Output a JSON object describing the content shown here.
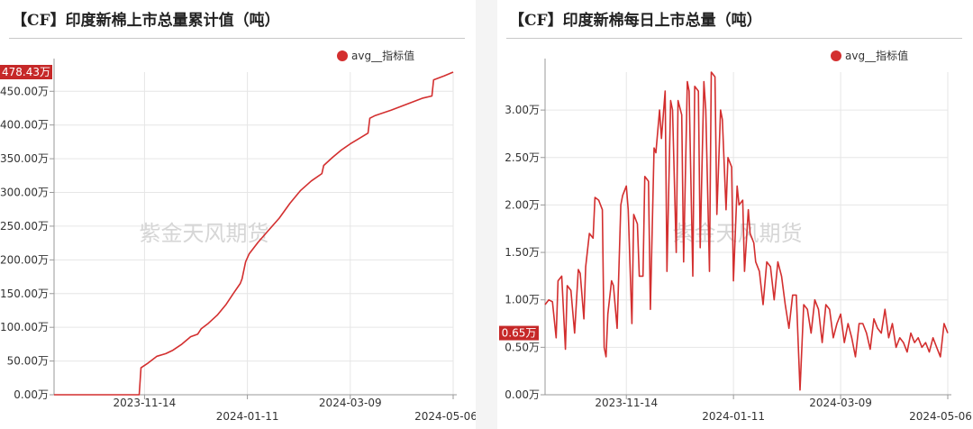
{
  "charts": [
    {
      "title": "【CF】印度新棉上市总量累计值（吨）",
      "watermark": "紫金天风期货",
      "current_value_label": "478.43万",
      "legend": {
        "label": "avg__指标值",
        "color": "#d32f2f",
        "placement": "top-right"
      }
    },
    {
      "title": "【CF】印度新棉每日上市总量（吨）",
      "watermark": "紫金天风期货",
      "current_value_label": "0.65万",
      "legend": {
        "label": "avg__指标值",
        "color": "#d32f2f",
        "placement": "top-right"
      }
    }
  ],
  "chart_data": [
    {
      "type": "line",
      "title": "【CF】印度新棉上市总量累计值（吨）",
      "unit": "万",
      "line_color": "#d32f2f",
      "ylim": [
        0,
        478.43
      ],
      "y_ticks": [
        0,
        50,
        100,
        150,
        200,
        250,
        300,
        350,
        400,
        450
      ],
      "y_tick_labels": [
        "0.00万",
        "50.00万",
        "100.00万",
        "150.00万",
        "200.00万",
        "250.00万",
        "300.00万",
        "350.00万",
        "400.00万",
        "450.00万"
      ],
      "x_range": [
        "2023-09-24",
        "2024-05-06"
      ],
      "x_ticks": [
        "2023-11-14",
        "2024-01-11",
        "2024-03-09",
        "2024-05-06"
      ],
      "x_tick_labels": [
        "2023-11-14",
        "2024-01-11",
        "2024-03-09",
        "2024-05-06"
      ],
      "grid": true,
      "current_value": 478.43,
      "series": [
        {
          "x": [
            "2023-09-24",
            "2023-11-11",
            "2023-11-12",
            "2023-11-16",
            "2023-11-21",
            "2023-11-26",
            "2023-11-30",
            "2023-12-05",
            "2023-12-10",
            "2023-12-14",
            "2023-12-16",
            "2023-12-20",
            "2023-12-25",
            "2023-12-30",
            "2024-01-03",
            "2024-01-07",
            "2024-01-08",
            "2024-01-10",
            "2024-01-12",
            "2024-01-17",
            "2024-01-23",
            "2024-01-29",
            "2024-02-04",
            "2024-02-10",
            "2024-02-16",
            "2024-02-22",
            "2024-02-23",
            "2024-02-28",
            "2024-03-04",
            "2024-03-09",
            "2024-03-14",
            "2024-03-19",
            "2024-03-20",
            "2024-03-23",
            "2024-04-01",
            "2024-04-10",
            "2024-04-19",
            "2024-04-24",
            "2024-04-25",
            "2024-05-01",
            "2024-05-06"
          ],
          "y": [
            0,
            0,
            40,
            47,
            57,
            61,
            66,
            75,
            86,
            90,
            98,
            106,
            118,
            134,
            150,
            165,
            172,
            197,
            209,
            226,
            244,
            262,
            284,
            303,
            317,
            328,
            340,
            352,
            363,
            372,
            380,
            388,
            410,
            414,
            422,
            431,
            440,
            443,
            467,
            473,
            478.43
          ]
        }
      ]
    },
    {
      "type": "line",
      "title": "【CF】印度新棉每日上市总量（吨）",
      "unit": "万",
      "line_color": "#d32f2f",
      "ylim": [
        0,
        3.4
      ],
      "y_ticks": [
        0,
        0.5,
        1,
        1.5,
        2,
        2.5,
        3
      ],
      "y_tick_labels": [
        "0.00万",
        "0.50万",
        "1.00万",
        "1.50万",
        "2.00万",
        "2.50万",
        "3.00万"
      ],
      "x_range": [
        "2023-10-01",
        "2024-05-06"
      ],
      "x_ticks": [
        "2023-11-14",
        "2024-01-11",
        "2024-03-09",
        "2024-05-06"
      ],
      "x_tick_labels": [
        "2023-11-14",
        "2024-01-11",
        "2024-03-09",
        "2024-05-06"
      ],
      "grid": true,
      "current_value": 0.65,
      "series": [
        {
          "x": [
            "2023-10-01",
            "2023-10-03",
            "2023-10-05",
            "2023-10-07",
            "2023-10-08",
            "2023-10-10",
            "2023-10-12",
            "2023-10-13",
            "2023-10-15",
            "2023-10-17",
            "2023-10-19",
            "2023-10-20",
            "2023-10-22",
            "2023-10-23",
            "2023-10-25",
            "2023-10-27",
            "2023-10-28",
            "2023-10-30",
            "2023-11-01",
            "2023-11-02",
            "2023-11-03",
            "2023-11-04",
            "2023-11-06",
            "2023-11-07",
            "2023-11-09",
            "2023-11-11",
            "2023-11-12",
            "2023-11-14",
            "2023-11-15",
            "2023-11-17",
            "2023-11-18",
            "2023-11-20",
            "2023-11-21",
            "2023-11-23",
            "2023-11-24",
            "2023-11-26",
            "2023-11-27",
            "2023-11-29",
            "2023-11-30",
            "2023-12-02",
            "2023-12-03",
            "2023-12-05",
            "2023-12-06",
            "2023-12-08",
            "2023-12-09",
            "2023-12-11",
            "2023-12-12",
            "2023-12-14",
            "2023-12-15",
            "2023-12-17",
            "2023-12-18",
            "2023-12-20",
            "2023-12-21",
            "2023-12-23",
            "2023-12-24",
            "2023-12-26",
            "2023-12-27",
            "2023-12-29",
            "2023-12-30",
            "2024-01-01",
            "2024-01-02",
            "2024-01-04",
            "2024-01-05",
            "2024-01-07",
            "2024-01-08",
            "2024-01-10",
            "2024-01-11",
            "2024-01-13",
            "2024-01-14",
            "2024-01-16",
            "2024-01-17",
            "2024-01-19",
            "2024-01-20",
            "2024-01-22",
            "2024-01-23",
            "2024-01-25",
            "2024-01-27",
            "2024-01-29",
            "2024-01-31",
            "2024-02-02",
            "2024-02-04",
            "2024-02-06",
            "2024-02-08",
            "2024-02-10",
            "2024-02-12",
            "2024-02-14",
            "2024-02-16",
            "2024-02-18",
            "2024-02-20",
            "2024-02-22",
            "2024-02-24",
            "2024-02-26",
            "2024-02-28",
            "2024-03-01",
            "2024-03-03",
            "2024-03-05",
            "2024-03-07",
            "2024-03-09",
            "2024-03-11",
            "2024-03-13",
            "2024-03-15",
            "2024-03-17",
            "2024-03-19",
            "2024-03-21",
            "2024-03-23",
            "2024-03-25",
            "2024-03-27",
            "2024-03-29",
            "2024-03-31",
            "2024-04-02",
            "2024-04-04",
            "2024-04-06",
            "2024-04-08",
            "2024-04-10",
            "2024-04-12",
            "2024-04-14",
            "2024-04-16",
            "2024-04-18",
            "2024-04-20",
            "2024-04-22",
            "2024-04-24",
            "2024-04-26",
            "2024-04-28",
            "2024-04-30",
            "2024-05-02",
            "2024-05-04",
            "2024-05-06"
          ],
          "y": [
            0.95,
            1.0,
            0.98,
            0.6,
            1.2,
            1.25,
            0.48,
            1.15,
            1.1,
            0.65,
            1.32,
            1.28,
            0.8,
            1.35,
            1.7,
            1.65,
            2.08,
            2.05,
            1.95,
            0.5,
            0.4,
            0.85,
            1.2,
            1.15,
            0.7,
            2.0,
            2.1,
            2.2,
            1.95,
            0.75,
            1.9,
            1.8,
            1.25,
            1.25,
            2.3,
            2.25,
            0.9,
            2.6,
            2.55,
            3.0,
            2.7,
            3.2,
            1.3,
            3.1,
            3.0,
            1.5,
            3.1,
            2.95,
            1.4,
            3.3,
            3.2,
            1.25,
            3.25,
            3.2,
            1.55,
            3.3,
            3.0,
            1.3,
            3.4,
            3.35,
            1.9,
            3.0,
            2.9,
            1.95,
            2.5,
            2.4,
            1.2,
            2.2,
            2.0,
            2.05,
            1.3,
            1.95,
            1.7,
            1.6,
            1.4,
            1.3,
            0.95,
            1.4,
            1.35,
            1.0,
            1.4,
            1.25,
            0.95,
            0.7,
            1.05,
            1.05,
            0.05,
            0.95,
            0.9,
            0.65,
            1.0,
            0.9,
            0.55,
            0.95,
            0.9,
            0.6,
            0.75,
            0.85,
            0.55,
            0.75,
            0.6,
            0.4,
            0.75,
            0.75,
            0.65,
            0.48,
            0.8,
            0.7,
            0.65,
            0.9,
            0.6,
            0.75,
            0.5,
            0.6,
            0.55,
            0.45,
            0.65,
            0.55,
            0.6,
            0.5,
            0.55,
            0.45,
            0.6,
            0.5,
            0.4,
            0.75,
            0.65
          ]
        }
      ]
    }
  ]
}
